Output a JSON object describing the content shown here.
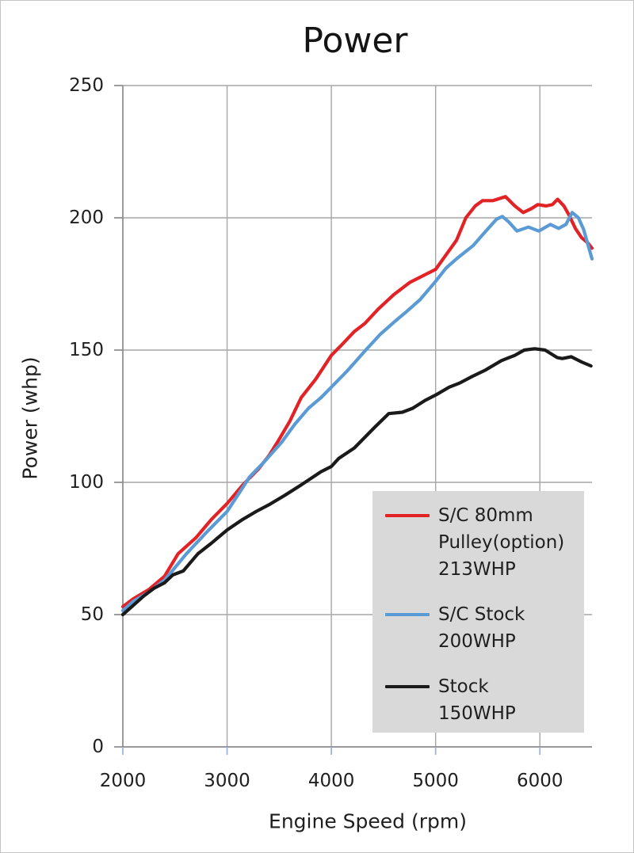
{
  "title": "Power",
  "axes": {
    "x_label": "Engine Speed (rpm)",
    "y_label": "Power (whp)",
    "x_ticks": [
      2000,
      3000,
      4000,
      5000,
      6000
    ],
    "y_ticks": [
      0,
      50,
      100,
      150,
      200,
      250
    ],
    "x_range": [
      2000,
      6500
    ],
    "y_range": [
      0,
      250
    ]
  },
  "legend": {
    "items": [
      {
        "label_lines": [
          "S/C 80mm",
          "Pulley(option)",
          "213WHP"
        ],
        "color": "#e32226"
      },
      {
        "label_lines": [
          "S/C Stock",
          "200WHP"
        ],
        "color": "#5b9bd5"
      },
      {
        "label_lines": [
          "Stock",
          "150WHP"
        ],
        "color": "#1a1a1a"
      }
    ]
  },
  "colors": {
    "grid": "#a6a6a6",
    "axis": "#8a8a8a",
    "x_tick_mark": "#95b3d7",
    "y_tick_mark": "#8a8a8a",
    "legend_background": "#d9d9d9",
    "text": "#1f1f1f"
  },
  "chart_data": {
    "type": "line",
    "title": "Power",
    "xlabel": "Engine Speed (rpm)",
    "ylabel": "Power (whp)",
    "xlim": [
      2000,
      6500
    ],
    "ylim": [
      0,
      250
    ],
    "grid": true,
    "legend_position": "lower right",
    "series": [
      {
        "name": "S/C 80mm Pulley(option) 213WHP",
        "color": "#e32226",
        "points": [
          [
            2000,
            53
          ],
          [
            2100,
            56
          ],
          [
            2250,
            59.5
          ],
          [
            2400,
            64.5
          ],
          [
            2530,
            73
          ],
          [
            2700,
            79
          ],
          [
            2850,
            86
          ],
          [
            3000,
            92
          ],
          [
            3150,
            99
          ],
          [
            3300,
            105
          ],
          [
            3400,
            110
          ],
          [
            3480,
            115
          ],
          [
            3600,
            123
          ],
          [
            3710,
            132
          ],
          [
            3850,
            139
          ],
          [
            4000,
            148
          ],
          [
            4100,
            152
          ],
          [
            4220,
            157
          ],
          [
            4320,
            160
          ],
          [
            4450,
            165.5
          ],
          [
            4600,
            171
          ],
          [
            4750,
            175.5
          ],
          [
            4900,
            178.5
          ],
          [
            5000,
            180.5
          ],
          [
            5100,
            186
          ],
          [
            5200,
            191.5
          ],
          [
            5290,
            200
          ],
          [
            5380,
            204.5
          ],
          [
            5450,
            206.5
          ],
          [
            5550,
            206.5
          ],
          [
            5670,
            208
          ],
          [
            5760,
            204.5
          ],
          [
            5840,
            202
          ],
          [
            5920,
            203.5
          ],
          [
            5980,
            205
          ],
          [
            6060,
            204.5
          ],
          [
            6120,
            205
          ],
          [
            6170,
            207
          ],
          [
            6230,
            204.5
          ],
          [
            6280,
            201
          ],
          [
            6340,
            196
          ],
          [
            6400,
            192.5
          ],
          [
            6460,
            190.5
          ],
          [
            6500,
            188.5
          ]
        ]
      },
      {
        "name": "S/C Stock 200WHP",
        "color": "#5b9bd5",
        "points": [
          [
            2000,
            51.5
          ],
          [
            2100,
            55
          ],
          [
            2250,
            58.5
          ],
          [
            2400,
            63
          ],
          [
            2610,
            73
          ],
          [
            2800,
            81
          ],
          [
            3000,
            89
          ],
          [
            3100,
            95
          ],
          [
            3215,
            102
          ],
          [
            3350,
            107.5
          ],
          [
            3520,
            115
          ],
          [
            3650,
            122
          ],
          [
            3780,
            128
          ],
          [
            3900,
            132
          ],
          [
            4000,
            136
          ],
          [
            4150,
            142
          ],
          [
            4330,
            150
          ],
          [
            4470,
            156
          ],
          [
            4600,
            160.5
          ],
          [
            4720,
            164.5
          ],
          [
            4850,
            169
          ],
          [
            5000,
            176
          ],
          [
            5100,
            181
          ],
          [
            5200,
            184.5
          ],
          [
            5360,
            189.5
          ],
          [
            5460,
            194
          ],
          [
            5585,
            199.5
          ],
          [
            5640,
            200.5
          ],
          [
            5700,
            198.5
          ],
          [
            5780,
            195
          ],
          [
            5890,
            196.5
          ],
          [
            5990,
            195
          ],
          [
            6100,
            197.5
          ],
          [
            6180,
            196
          ],
          [
            6250,
            197.5
          ],
          [
            6310,
            202
          ],
          [
            6370,
            200
          ],
          [
            6420,
            195.5
          ],
          [
            6500,
            184.5
          ]
        ]
      },
      {
        "name": "Stock 150WHP",
        "color": "#1a1a1a",
        "points": [
          [
            2000,
            50
          ],
          [
            2100,
            53.5
          ],
          [
            2200,
            57
          ],
          [
            2300,
            60
          ],
          [
            2400,
            62
          ],
          [
            2480,
            65
          ],
          [
            2580,
            66.5
          ],
          [
            2720,
            73
          ],
          [
            2850,
            77
          ],
          [
            3000,
            82
          ],
          [
            3150,
            86
          ],
          [
            3280,
            89
          ],
          [
            3400,
            91.5
          ],
          [
            3550,
            95
          ],
          [
            3710,
            99
          ],
          [
            3900,
            104
          ],
          [
            4000,
            106
          ],
          [
            4070,
            109
          ],
          [
            4220,
            113
          ],
          [
            4420,
            121
          ],
          [
            4550,
            126
          ],
          [
            4680,
            126.5
          ],
          [
            4780,
            128
          ],
          [
            4900,
            131
          ],
          [
            5000,
            133
          ],
          [
            5130,
            136
          ],
          [
            5230,
            137.5
          ],
          [
            5350,
            140
          ],
          [
            5480,
            142.5
          ],
          [
            5630,
            146
          ],
          [
            5760,
            148
          ],
          [
            5850,
            150
          ],
          [
            5950,
            150.5
          ],
          [
            6050,
            150
          ],
          [
            6165,
            147.2
          ],
          [
            6215,
            146.8
          ],
          [
            6300,
            147.5
          ],
          [
            6400,
            145.5
          ],
          [
            6490,
            144
          ]
        ]
      }
    ]
  }
}
